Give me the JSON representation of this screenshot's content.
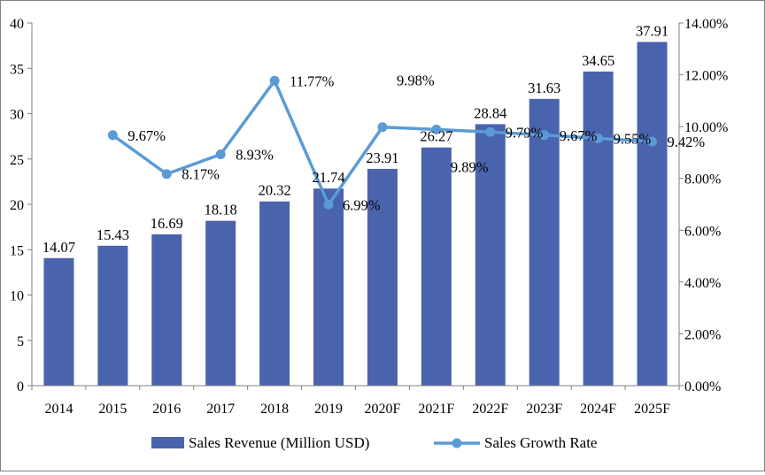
{
  "chart_data": {
    "type": "bar",
    "categories": [
      "2014",
      "2015",
      "2016",
      "2017",
      "2018",
      "2019",
      "2020F",
      "2021F",
      "2022F",
      "2023F",
      "2024F",
      "2025F"
    ],
    "series": [
      {
        "name": "Sales Revenue (Million USD)",
        "type": "bar",
        "axis": "left",
        "color": "#4a63ad",
        "values": [
          14.07,
          15.43,
          16.69,
          18.18,
          20.32,
          21.74,
          23.91,
          26.27,
          28.84,
          31.63,
          34.65,
          37.91
        ],
        "labels": [
          "14.07",
          "15.43",
          "16.69",
          "18.18",
          "20.32",
          "21.74",
          "23.91",
          "26.27",
          "28.84",
          "31.63",
          "34.65",
          "37.91"
        ]
      },
      {
        "name": "Sales Growth Rate",
        "type": "line",
        "axis": "right",
        "color": "#5b9bd5",
        "values": [
          null,
          9.67,
          8.17,
          8.93,
          11.77,
          6.99,
          9.98,
          9.89,
          9.79,
          9.67,
          9.55,
          9.42
        ],
        "labels": [
          "",
          "9.67%",
          "8.17%",
          "8.93%",
          "11.77%",
          "6.99%",
          "9.98%",
          "9.89%",
          "9.79%",
          "9.67%",
          "9.55%",
          "9.42%"
        ]
      }
    ],
    "y_left": {
      "range": [
        0,
        40
      ],
      "ticks": [
        0,
        5,
        10,
        15,
        20,
        25,
        30,
        35,
        40
      ],
      "tick_labels": [
        "0",
        "5",
        "10",
        "15",
        "20",
        "25",
        "30",
        "35",
        "40"
      ]
    },
    "y_right": {
      "range": [
        0,
        14
      ],
      "ticks": [
        0,
        2,
        4,
        6,
        8,
        10,
        12,
        14
      ],
      "tick_labels": [
        "0.00%",
        "2.00%",
        "4.00%",
        "6.00%",
        "8.00%",
        "10.00%",
        "12.00%",
        "14.00%"
      ]
    },
    "grid": false,
    "legend_position": "bottom",
    "axis_color": "#808080"
  }
}
